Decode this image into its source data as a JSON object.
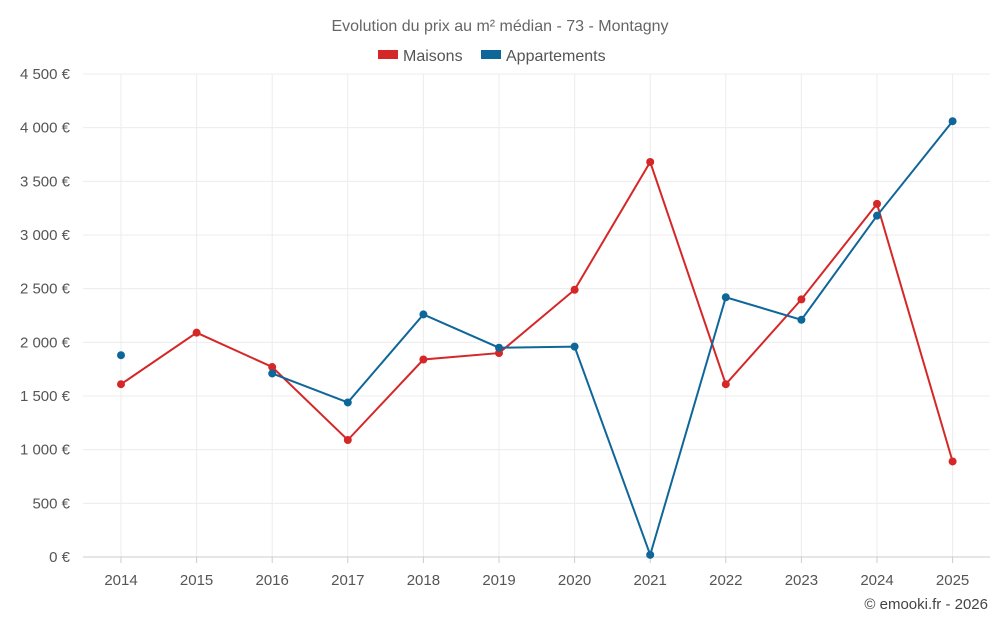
{
  "chart_data": {
    "type": "line",
    "title": "Evolution du prix au m² médian - 73 - Montagny",
    "categories": [
      "2014",
      "2015",
      "2016",
      "2017",
      "2018",
      "2019",
      "2020",
      "2021",
      "2022",
      "2023",
      "2024",
      "2025"
    ],
    "ylim": [
      0,
      4500
    ],
    "yticks": [
      0,
      500,
      1000,
      1500,
      2000,
      2500,
      3000,
      3500,
      4000,
      4500
    ],
    "ytick_labels": [
      "0 €",
      "500 €",
      "1 000 €",
      "1 500 €",
      "2 000 €",
      "2 500 €",
      "3 000 €",
      "3 500 €",
      "4 000 €",
      "4 500 €"
    ],
    "grid": true,
    "legend_position": "top-center",
    "series": [
      {
        "name": "Maisons",
        "color": "#d62728",
        "values": [
          1610,
          2090,
          1770,
          1090,
          1840,
          1900,
          2490,
          3680,
          1610,
          2400,
          3290,
          890
        ]
      },
      {
        "name": "Appartements",
        "color": "#0f6699",
        "values": [
          1880,
          null,
          1710,
          1440,
          2260,
          1950,
          1960,
          20,
          2420,
          2210,
          3180,
          4060
        ]
      }
    ],
    "credit": "© emooki.fr - 2026"
  }
}
